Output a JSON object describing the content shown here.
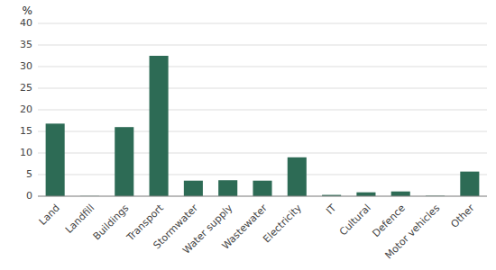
{
  "chart_data": {
    "type": "bar",
    "ylabel": "%",
    "categories": [
      "Land",
      "Landfill",
      "Buildings",
      "Transport",
      "Stormwater",
      "Water supply",
      "Wastewater",
      "Electricity",
      "IT",
      "Cultural",
      "Defence",
      "Motor vehicles",
      "Other"
    ],
    "values": [
      16.8,
      0.05,
      16.0,
      32.5,
      3.6,
      3.7,
      3.6,
      9.0,
      0.3,
      0.9,
      1.1,
      0.1,
      5.7
    ],
    "color": "#2d6b55",
    "ylim": [
      0,
      40
    ],
    "yticks": [
      0,
      5,
      10,
      15,
      20,
      25,
      30,
      35,
      40
    ],
    "grid": true
  }
}
